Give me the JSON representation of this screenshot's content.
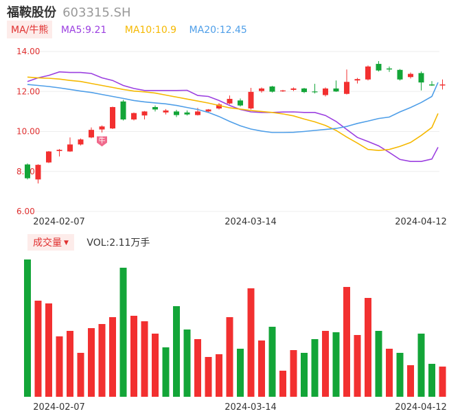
{
  "header": {
    "name": "福鞍股份",
    "code": "603315.SH"
  },
  "legend": {
    "tag": "MA/牛熊",
    "ma5": "MA5:9.21",
    "ma10": "MA10:10.9",
    "ma20": "MA20:12.45",
    "colors": {
      "ma5": "#9b3fe0",
      "ma10": "#f5b800",
      "ma20": "#4e9ee8"
    }
  },
  "volume_legend": {
    "tag": "成交量",
    "value": "VOL:2.11万手"
  },
  "colors": {
    "up": "#f23030",
    "down": "#13a538",
    "grid": "#eeeeee",
    "ytick": "#e03030"
  },
  "marker": {
    "label": "牛"
  },
  "chart_data": [
    {
      "type": "candlestick",
      "title": "",
      "ylim": [
        6.0,
        14.0
      ],
      "y_ticks": [
        "14.00",
        "12.00",
        "10.00",
        "8.00",
        "6.00"
      ],
      "x_ticks": [
        "2024-02-07",
        "2024-03-14",
        "2024-04-12"
      ],
      "x_tick_index": [
        0,
        18,
        34
      ],
      "candles": [
        {
          "o": 8.35,
          "h": 8.4,
          "l": 7.6,
          "c": 7.66
        },
        {
          "o": 7.6,
          "h": 8.36,
          "l": 7.4,
          "c": 8.33
        },
        {
          "o": 8.45,
          "h": 9.02,
          "l": 8.42,
          "c": 9.0
        },
        {
          "o": 9.02,
          "h": 9.12,
          "l": 8.75,
          "c": 9.08
        },
        {
          "o": 9.0,
          "h": 9.7,
          "l": 8.98,
          "c": 9.35
        },
        {
          "o": 9.35,
          "h": 9.65,
          "l": 9.3,
          "c": 9.6
        },
        {
          "o": 9.7,
          "h": 10.2,
          "l": 9.66,
          "c": 10.08
        },
        {
          "o": 10.1,
          "h": 10.3,
          "l": 9.95,
          "c": 10.25
        },
        {
          "o": 10.15,
          "h": 11.24,
          "l": 10.12,
          "c": 11.22
        },
        {
          "o": 11.5,
          "h": 11.58,
          "l": 10.55,
          "c": 10.6
        },
        {
          "o": 10.6,
          "h": 10.95,
          "l": 10.55,
          "c": 10.92
        },
        {
          "o": 10.8,
          "h": 11.02,
          "l": 10.6,
          "c": 11.0
        },
        {
          "o": 11.22,
          "h": 11.3,
          "l": 11.0,
          "c": 11.1
        },
        {
          "o": 10.95,
          "h": 11.12,
          "l": 10.85,
          "c": 11.05
        },
        {
          "o": 11.0,
          "h": 11.08,
          "l": 10.72,
          "c": 10.82
        },
        {
          "o": 10.95,
          "h": 11.05,
          "l": 10.8,
          "c": 10.85
        },
        {
          "o": 10.82,
          "h": 11.18,
          "l": 10.8,
          "c": 11.0
        },
        {
          "o": 11.0,
          "h": 11.12,
          "l": 10.95,
          "c": 11.1
        },
        {
          "o": 11.15,
          "h": 11.42,
          "l": 11.1,
          "c": 11.35
        },
        {
          "o": 11.4,
          "h": 11.8,
          "l": 11.35,
          "c": 11.63
        },
        {
          "o": 11.55,
          "h": 11.65,
          "l": 11.25,
          "c": 11.3
        },
        {
          "o": 11.15,
          "h": 12.18,
          "l": 11.1,
          "c": 11.98
        },
        {
          "o": 12.02,
          "h": 12.2,
          "l": 11.94,
          "c": 12.15
        },
        {
          "o": 12.25,
          "h": 12.28,
          "l": 11.95,
          "c": 11.99
        },
        {
          "o": 12.03,
          "h": 12.08,
          "l": 11.98,
          "c": 12.05
        },
        {
          "o": 12.08,
          "h": 12.2,
          "l": 12.02,
          "c": 12.15
        },
        {
          "o": 12.15,
          "h": 12.18,
          "l": 11.92,
          "c": 11.97
        },
        {
          "o": 12.0,
          "h": 12.38,
          "l": 11.9,
          "c": 11.97
        },
        {
          "o": 11.82,
          "h": 12.2,
          "l": 11.75,
          "c": 12.15
        },
        {
          "o": 12.15,
          "h": 12.55,
          "l": 11.98,
          "c": 12.0
        },
        {
          "o": 11.88,
          "h": 13.1,
          "l": 11.85,
          "c": 12.48
        },
        {
          "o": 12.55,
          "h": 12.68,
          "l": 12.4,
          "c": 12.62
        },
        {
          "o": 12.6,
          "h": 13.3,
          "l": 12.55,
          "c": 13.25
        },
        {
          "o": 13.38,
          "h": 13.52,
          "l": 13.0,
          "c": 13.05
        },
        {
          "o": 13.15,
          "h": 13.25,
          "l": 12.98,
          "c": 13.1
        },
        {
          "o": 13.08,
          "h": 13.12,
          "l": 12.55,
          "c": 12.6
        },
        {
          "o": 12.72,
          "h": 12.95,
          "l": 12.65,
          "c": 12.88
        },
        {
          "o": 12.92,
          "h": 13.0,
          "l": 12.05,
          "c": 12.45
        },
        {
          "o": 12.35,
          "h": 12.52,
          "l": 12.28,
          "c": 12.3
        },
        {
          "o": 12.3,
          "h": 12.6,
          "l": 12.1,
          "c": 12.35
        }
      ],
      "ma5": [
        12.5,
        12.68,
        12.8,
        12.98,
        12.95,
        12.95,
        12.9,
        12.68,
        12.55,
        12.3,
        12.15,
        12.05,
        12.05,
        12.05,
        12.05,
        12.06,
        11.8,
        11.75,
        11.55,
        11.3,
        11.1,
        10.98,
        10.95,
        10.95,
        10.97,
        10.98,
        10.95,
        10.95,
        10.8,
        10.5,
        10.1,
        9.7,
        9.5,
        9.28,
        8.95,
        8.6,
        8.5,
        8.5,
        8.62,
        9.21
      ],
      "ma10": [
        12.72,
        12.68,
        12.66,
        12.62,
        12.55,
        12.5,
        12.4,
        12.3,
        12.2,
        12.1,
        12.02,
        11.98,
        11.92,
        11.82,
        11.72,
        11.62,
        11.52,
        11.42,
        11.3,
        11.18,
        11.12,
        11.05,
        11.0,
        10.95,
        10.88,
        10.78,
        10.62,
        10.48,
        10.3,
        10.05,
        9.72,
        9.42,
        9.1,
        9.05,
        9.1,
        9.25,
        9.45,
        9.8,
        10.2,
        10.9
      ],
      "ma20": [
        12.35,
        12.3,
        12.25,
        12.18,
        12.1,
        12.02,
        11.95,
        11.85,
        11.75,
        11.65,
        11.55,
        11.48,
        11.43,
        11.38,
        11.3,
        11.2,
        11.1,
        10.95,
        10.75,
        10.5,
        10.28,
        10.12,
        10.02,
        9.95,
        9.95,
        9.96,
        10.0,
        10.05,
        10.1,
        10.15,
        10.25,
        10.4,
        10.52,
        10.65,
        10.72,
        10.98,
        11.2,
        11.45,
        11.75,
        12.45
      ]
    },
    {
      "type": "bar",
      "title": "",
      "x_ticks": [
        "2024-02-07",
        "2024-03-14",
        "2024-04-12"
      ],
      "x_tick_index": [
        0,
        18,
        34
      ],
      "values": [
        100,
        70,
        68,
        44,
        48,
        32,
        50,
        53,
        58,
        94,
        59,
        55,
        46,
        36,
        66,
        49,
        42,
        29,
        31,
        58,
        35,
        79,
        41,
        51,
        19,
        34,
        32,
        42,
        48,
        47,
        80,
        45,
        72,
        48,
        35,
        32,
        23,
        46,
        24,
        22
      ],
      "direction": [
        "down",
        "up",
        "up",
        "up",
        "up",
        "up",
        "up",
        "up",
        "up",
        "down",
        "up",
        "up",
        "up",
        "down",
        "down",
        "down",
        "up",
        "up",
        "up",
        "up",
        "down",
        "up",
        "up",
        "down",
        "up",
        "up",
        "down",
        "down",
        "up",
        "down",
        "up",
        "up",
        "up",
        "down",
        "up",
        "down",
        "up",
        "down",
        "down",
        "up"
      ]
    }
  ]
}
